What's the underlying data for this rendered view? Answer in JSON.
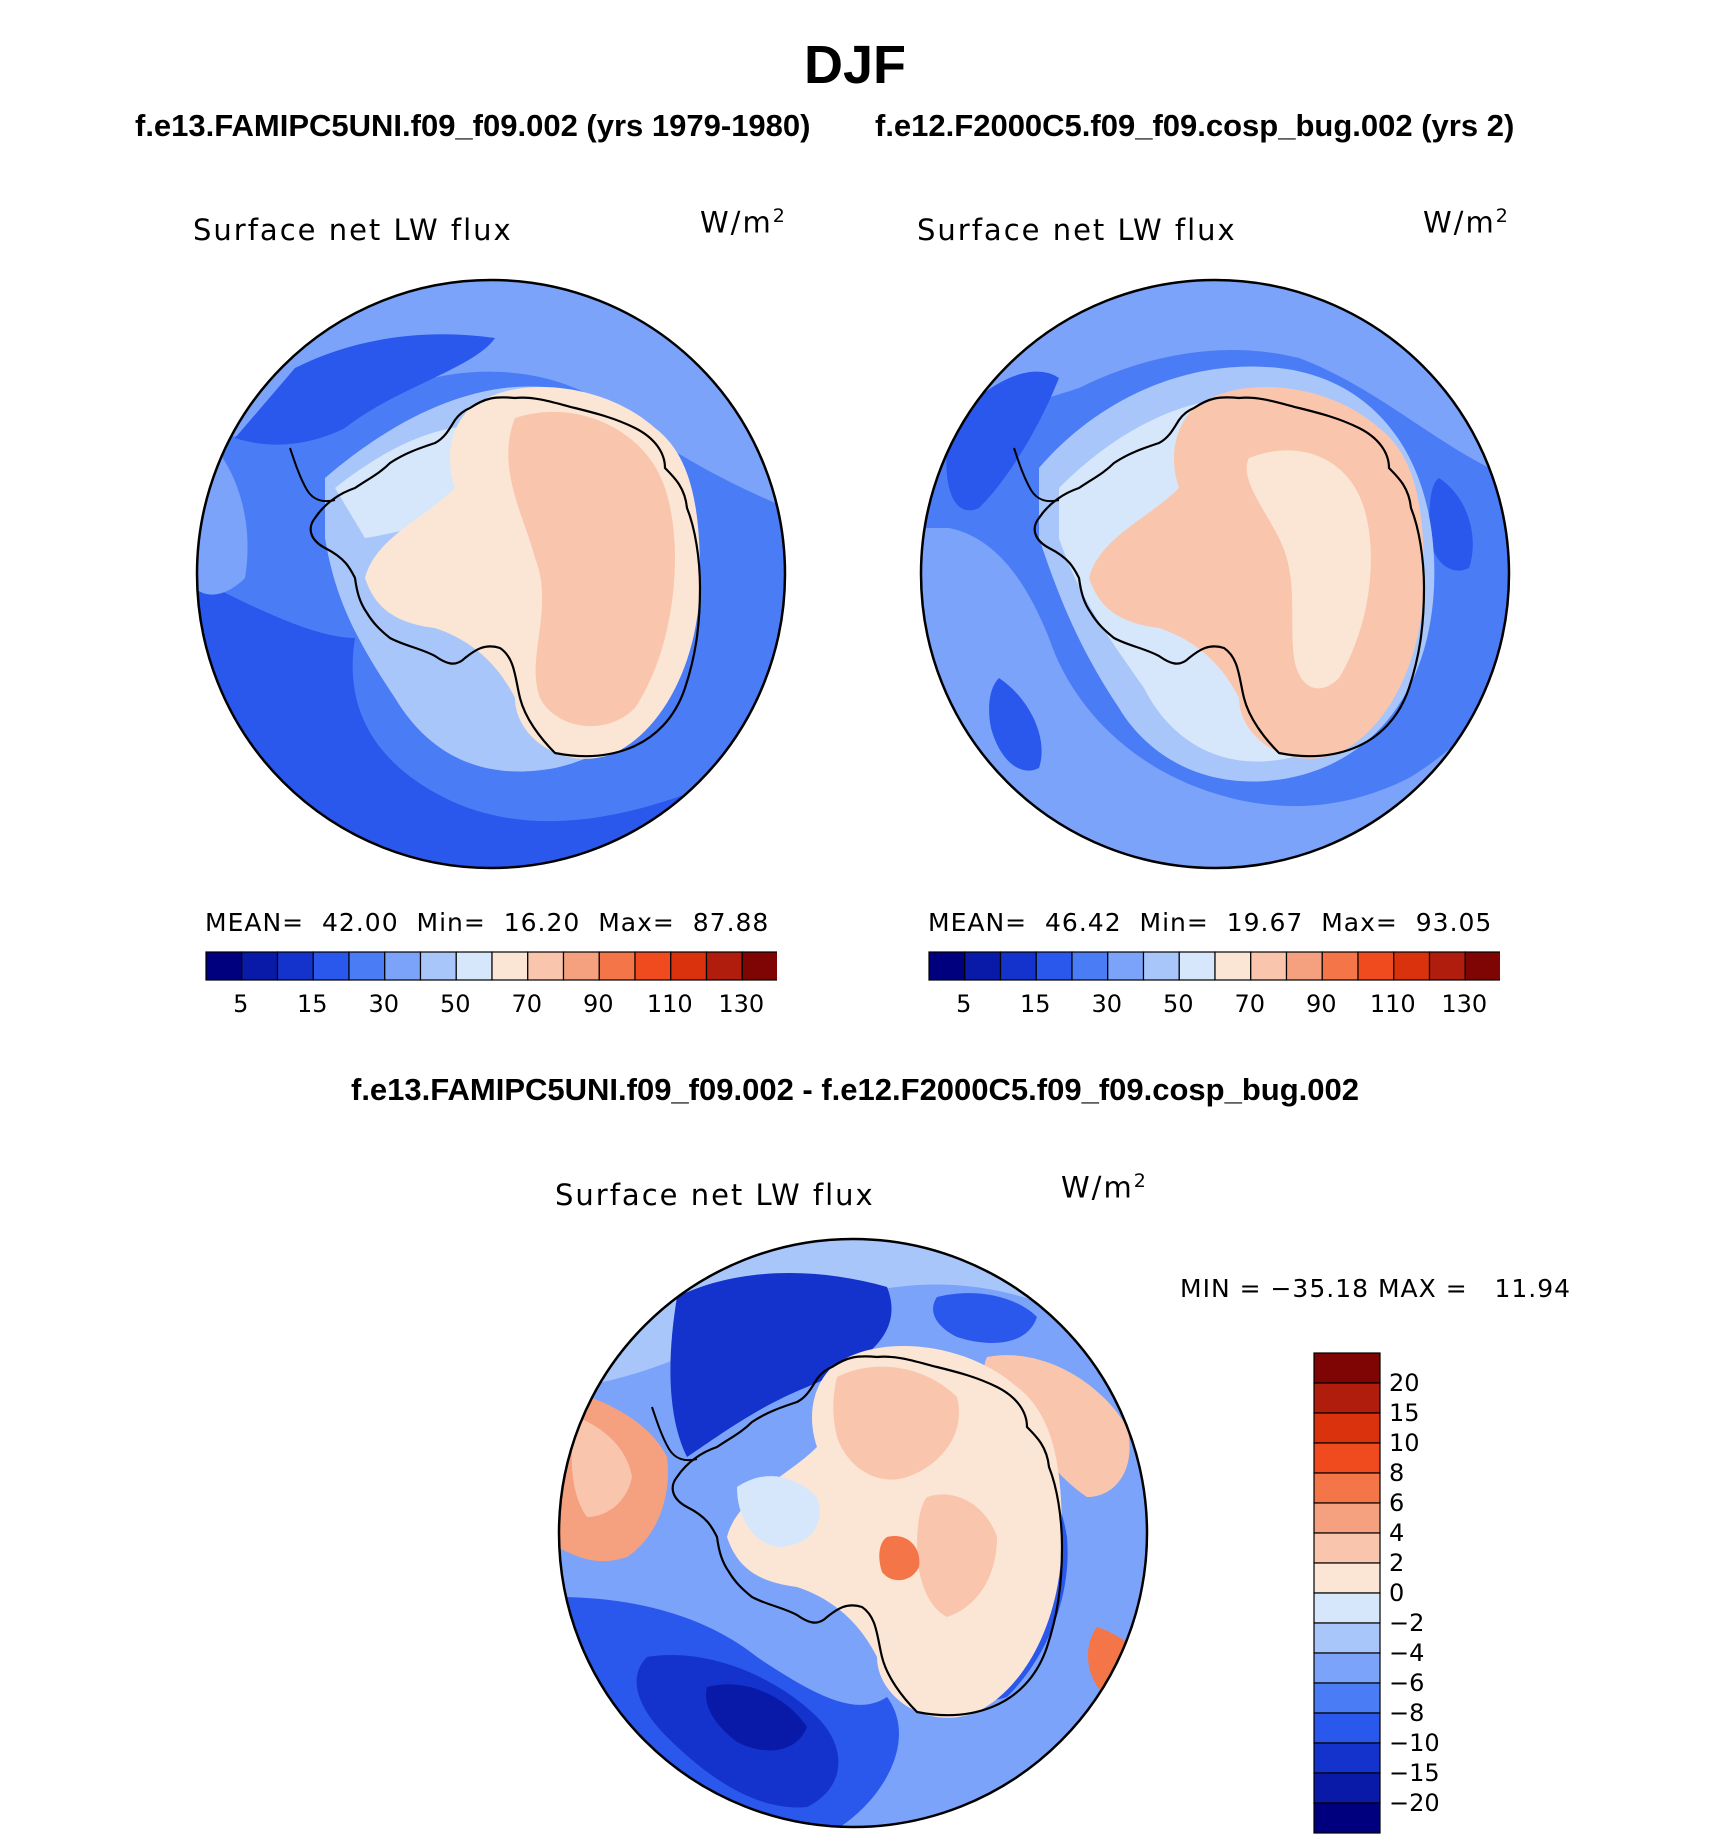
{
  "figure": {
    "season_title": "DJF",
    "case1_title": "f.e13.FAMIPC5UNI.f09_f09.002 (yrs 1979-1980)",
    "case2_title": "f.e12.F2000C5.f09_f09.cosp_bug.002 (yrs 2)",
    "diff_title": "f.e13.FAMIPC5UNI.f09_f09.002 - f.e12.F2000C5.f09_f09.cosp_bug.002"
  },
  "panels": [
    {
      "variable": "Surface net LW flux",
      "units": "W/m",
      "units_exponent": "2",
      "mean_label": "MEAN=",
      "mean_value": "42.00",
      "min_label": "Min=",
      "min_value": "16.20",
      "max_label": "Max=",
      "max_value": "87.88"
    },
    {
      "variable": "Surface net LW flux",
      "units": "W/m",
      "units_exponent": "2",
      "mean_label": "MEAN=",
      "mean_value": "46.42",
      "min_label": "Min=",
      "min_value": "19.67",
      "max_label": "Max=",
      "max_value": "93.05"
    },
    {
      "variable": "Surface net LW flux",
      "units": "W/m",
      "units_exponent": "2",
      "minmax_text": "MIN = −35.18 MAX =   11.94"
    }
  ],
  "colorbar_main": {
    "colors": [
      "#00007f",
      "#0a1aa8",
      "#1433cc",
      "#2a57ec",
      "#4a7cf6",
      "#7ca3fa",
      "#a9c6fb",
      "#d7e7fb",
      "#fbe6d6",
      "#f9c6ad",
      "#f5a180",
      "#f47547",
      "#f04a1f",
      "#d9320d",
      "#b01d0c",
      "#7f0505"
    ],
    "tick_labels": [
      "5",
      "15",
      "30",
      "50",
      "70",
      "90",
      "110",
      "130"
    ]
  },
  "colorbar_diff": {
    "colors": [
      "#00007f",
      "#0a1aa8",
      "#1433cc",
      "#2a57ec",
      "#4a7cf6",
      "#7ca3fa",
      "#a9c6fb",
      "#d7e7fb",
      "#fbe6d6",
      "#f9c6ad",
      "#f5a180",
      "#f47547",
      "#f04a1f",
      "#d9320d",
      "#b01d0c",
      "#7f0505"
    ],
    "tick_labels": [
      "20",
      "15",
      "10",
      "8",
      "6",
      "4",
      "2",
      "0",
      "−2",
      "−4",
      "−6",
      "−8",
      "−10",
      "−15",
      "−20"
    ]
  }
}
